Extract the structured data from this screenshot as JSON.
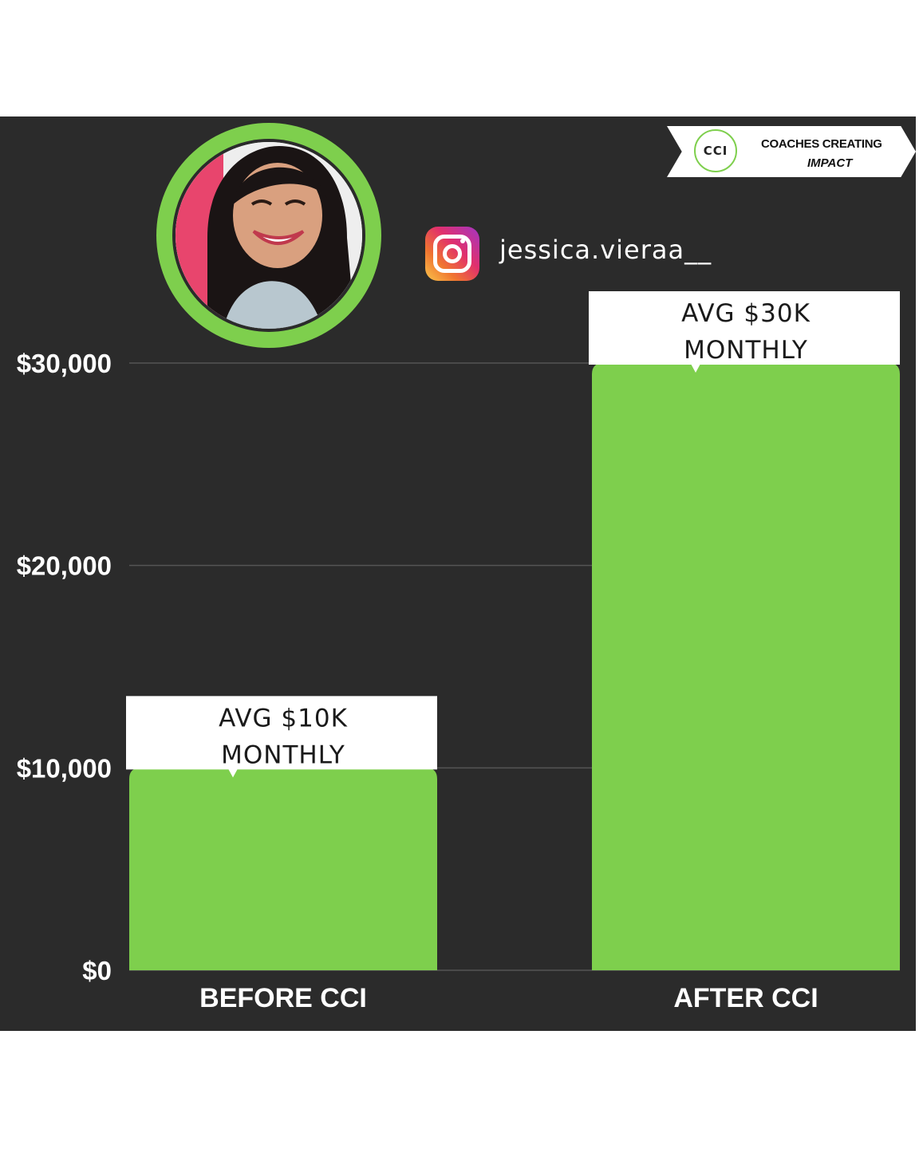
{
  "brand": {
    "logo_mark": "CCI",
    "logo_line1": "COACHES CREATING",
    "logo_line2": "IMPACT"
  },
  "profile": {
    "instagram_handle": "jessica.vieraa__"
  },
  "colors": {
    "panel_background": "#2b2b2b",
    "bar": "#7ecf4d",
    "ring": "#7ecf4d",
    "gridline": "#555555"
  },
  "chart_data": {
    "type": "bar",
    "categories": [
      "BEFORE CCI",
      "AFTER CCI"
    ],
    "values": [
      10000,
      30000
    ],
    "ylim": [
      0,
      30000
    ],
    "yticks": [
      0,
      10000,
      20000,
      30000
    ],
    "ytick_labels": [
      "$0",
      "$10,000",
      "$20,000",
      "$30,000"
    ],
    "annotations": [
      [
        "AVG $10K",
        "MONTHLY"
      ],
      [
        "AVG $30K",
        "MONTHLY"
      ]
    ],
    "grid": true,
    "title": "",
    "xlabel": "",
    "ylabel": ""
  }
}
